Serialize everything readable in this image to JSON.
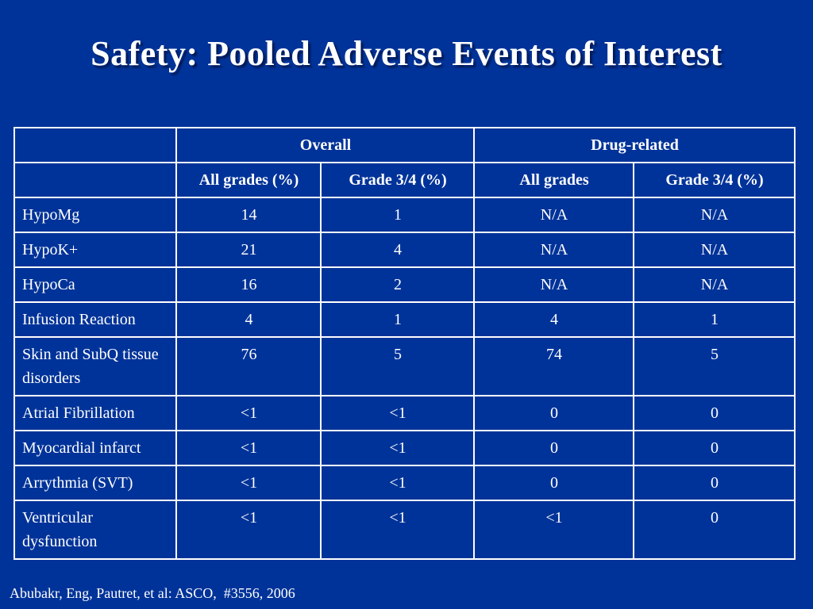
{
  "title": "Safety: Pooled Adverse Events of Interest",
  "table": {
    "group_headers": [
      "",
      "Overall",
      "Drug-related"
    ],
    "sub_headers": [
      "",
      "All grades (%)",
      "Grade 3/4 (%)",
      "All grades",
      "Grade 3/4 (%)"
    ],
    "rows": [
      {
        "label": "HypoMg",
        "overall_all": "14",
        "overall_g34": "1",
        "drug_all": "N/A",
        "drug_g34": "N/A"
      },
      {
        "label": "HypoK+",
        "overall_all": "21",
        "overall_g34": "4",
        "drug_all": "N/A",
        "drug_g34": "N/A"
      },
      {
        "label": "HypoCa",
        "overall_all": "16",
        "overall_g34": "2",
        "drug_all": "N/A",
        "drug_g34": "N/A"
      },
      {
        "label": "Infusion Reaction",
        "overall_all": "4",
        "overall_g34": "1",
        "drug_all": "4",
        "drug_g34": "1"
      },
      {
        "label": "Skin and SubQ tissue disorders",
        "overall_all": "76",
        "overall_g34": "5",
        "drug_all": "74",
        "drug_g34": "5"
      },
      {
        "label": "Atrial Fibrillation",
        "overall_all": "<1",
        "overall_g34": "<1",
        "drug_all": "0",
        "drug_g34": "0"
      },
      {
        "label": "Myocardial infarct",
        "overall_all": "<1",
        "overall_g34": "<1",
        "drug_all": "0",
        "drug_g34": "0"
      },
      {
        "label": "Arrythmia (SVT)",
        "overall_all": "<1",
        "overall_g34": "<1",
        "drug_all": "0",
        "drug_g34": "0"
      },
      {
        "label": "Ventricular dysfunction",
        "overall_all": "<1",
        "overall_g34": "<1",
        "drug_all": "<1",
        "drug_g34": "0"
      }
    ]
  },
  "footer": "Abubakr, Eng, Pautret, et al: ASCO,  #3556, 2006",
  "colors": {
    "background": "#003399",
    "text": "#ffffff",
    "grid": "#ffffff"
  }
}
